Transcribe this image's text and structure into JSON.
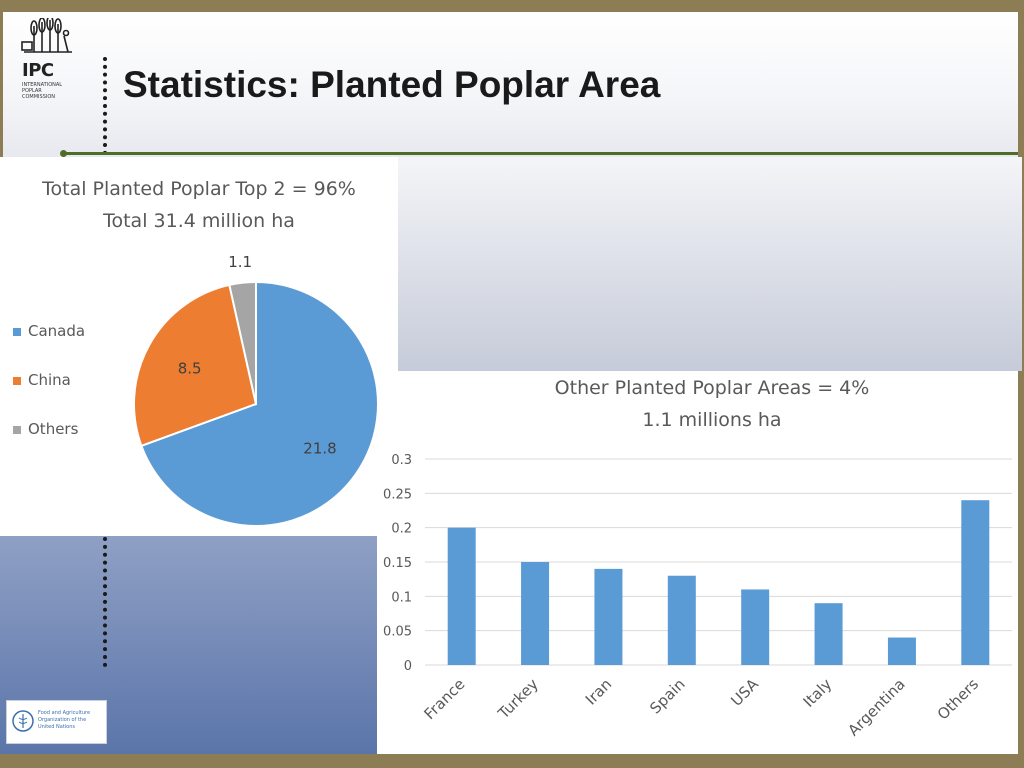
{
  "header": {
    "title": "Statistics: Planted Poplar Area",
    "logo_text": "IPC",
    "logo_subtext": "INTERNATIONAL\nPOPLAR\nCOMMISSION"
  },
  "footer": {
    "fao_text": "Food and Agriculture\nOrganization of the\nUnited Nations"
  },
  "colors": {
    "frame": "#8c7d55",
    "header_line": "#4f6d28",
    "canada": "#5b9bd5",
    "china": "#ed7d31",
    "others": "#a5a5a5",
    "bar": "#5b9bd5"
  },
  "chart_data": [
    {
      "type": "pie",
      "title": "Total Planted Poplar Top 2 = 96%",
      "subtitle": "Total 31.4 million ha",
      "slices": [
        {
          "label": "Canada",
          "value": 21.8,
          "color": "#5b9bd5"
        },
        {
          "label": "China",
          "value": 8.5,
          "color": "#ed7d31"
        },
        {
          "label": "Others",
          "value": 1.1,
          "color": "#a5a5a5"
        }
      ],
      "data_labels": [
        "21.8",
        "8.5",
        "1.1"
      ],
      "legend_placement": "left"
    },
    {
      "type": "bar",
      "title": "Other Planted Poplar Areas = 4%",
      "subtitle": "1.1 millions ha",
      "categories": [
        "France",
        "Turkey",
        "Iran",
        "Spain",
        "USA",
        "Italy",
        "Argentina",
        "Others"
      ],
      "values": [
        0.2,
        0.15,
        0.14,
        0.13,
        0.11,
        0.09,
        0.04,
        0.24
      ],
      "yticks": [
        "0",
        "0.05",
        "0.1",
        "0.15",
        "0.2",
        "0.25",
        "0.3"
      ],
      "ylim": [
        0,
        0.3
      ],
      "grid": true
    }
  ]
}
